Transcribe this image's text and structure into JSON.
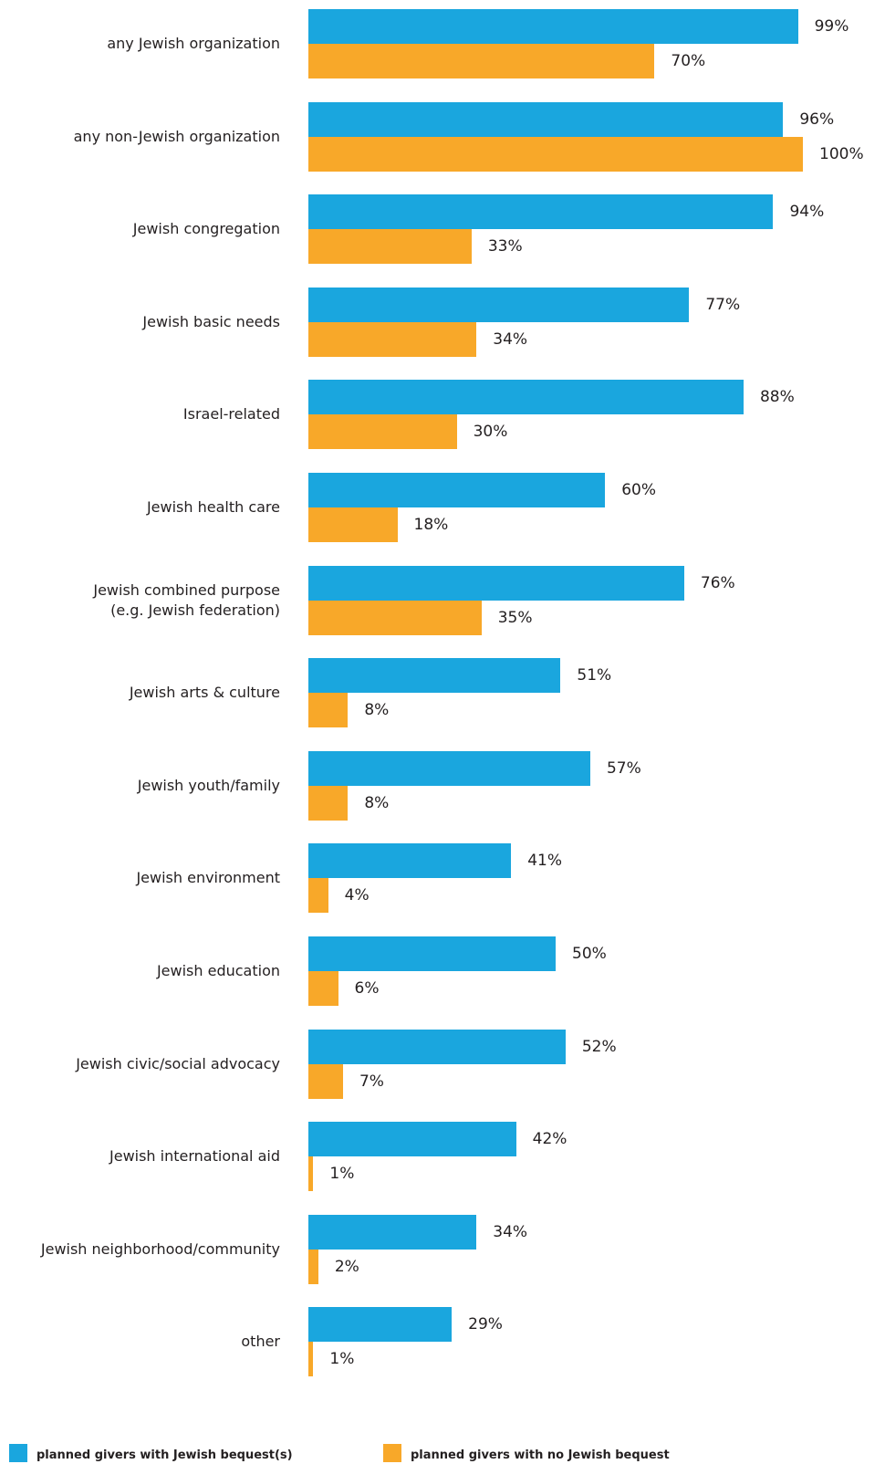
{
  "chart_data": {
    "type": "bar",
    "orientation": "horizontal",
    "categories": [
      "any Jewish organization",
      "any non-Jewish organization",
      "Jewish congregation",
      "Jewish basic needs",
      "Israel-related",
      "Jewish health care",
      "Jewish combined purpose\n(e.g. Jewish federation)",
      "Jewish arts & culture",
      "Jewish youth/family",
      "Jewish environment",
      "Jewish education",
      "Jewish civic/social advocacy",
      "Jewish international aid",
      "Jewish neighborhood/community",
      "other"
    ],
    "series": [
      {
        "name": "planned givers with Jewish bequest(s)",
        "color": "#1aa6de",
        "values": [
          99,
          96,
          94,
          77,
          88,
          60,
          76,
          51,
          57,
          41,
          50,
          52,
          42,
          34,
          29
        ],
        "labels": [
          "99%",
          "96%",
          "94%",
          "77%",
          "88%",
          "60%",
          "76%",
          "51%",
          "57%",
          "41%",
          "50%",
          "52%",
          "42%",
          "34%",
          "29%"
        ]
      },
      {
        "name": "planned givers with no Jewish bequest",
        "color": "#f8a829",
        "values": [
          70,
          100,
          33,
          34,
          30,
          18,
          35,
          8,
          8,
          4,
          6,
          7,
          1,
          2,
          1
        ],
        "labels": [
          "70%",
          "100%",
          "33%",
          "34%",
          "30%",
          "18%",
          "35%",
          "8%",
          "8%",
          "4%",
          "6%",
          "7%",
          "1%",
          "2%",
          "1%"
        ]
      }
    ],
    "xlim": [
      0,
      100
    ],
    "grid": false,
    "legend_position": "bottom"
  }
}
